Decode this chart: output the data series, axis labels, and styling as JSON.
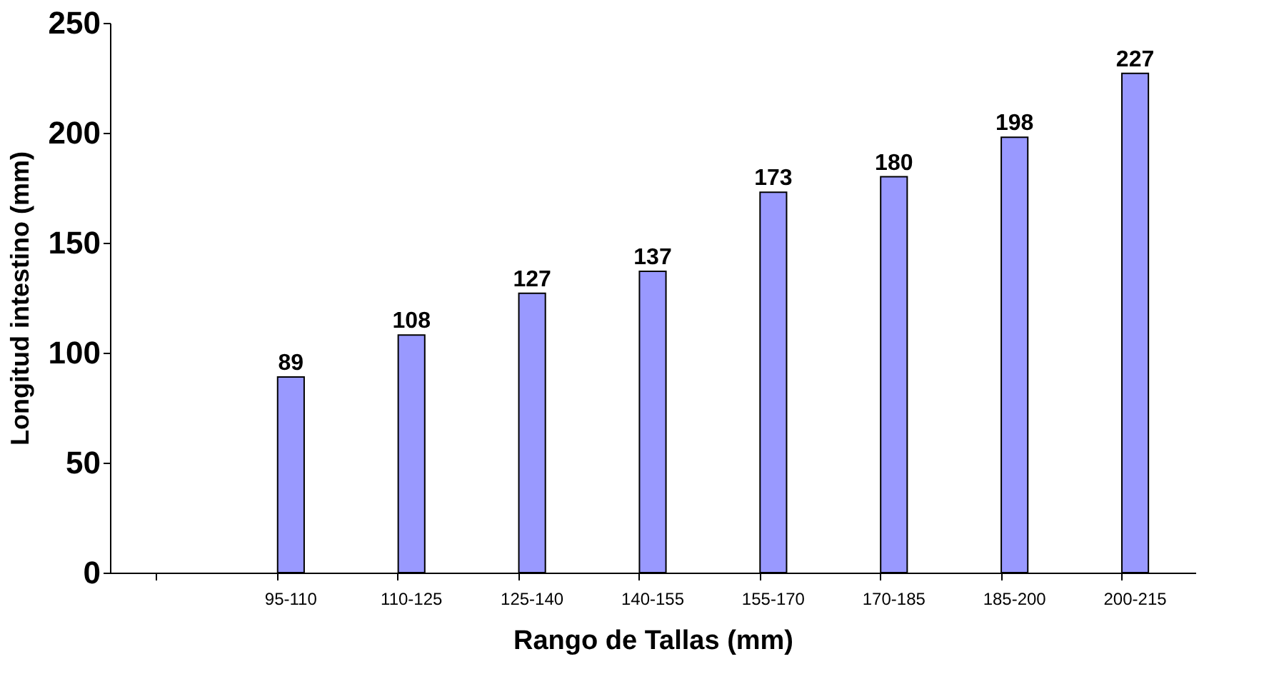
{
  "chart_data": {
    "type": "bar",
    "xlabel": "Rango de Tallas (mm)",
    "ylabel": "Longitud intestino (mm)",
    "categories": [
      null,
      "95-110",
      "110-125",
      "125-140",
      "140-155",
      "155-170",
      "170-185",
      "185-200",
      "200-215"
    ],
    "values": [
      null,
      89,
      108,
      127,
      137,
      173,
      180,
      198,
      227
    ],
    "color": "#9999ff",
    "ylim": [
      0,
      250
    ],
    "yticks": [
      0,
      50,
      100,
      150,
      200,
      250
    ],
    "grid": false,
    "data_labels": true
  }
}
